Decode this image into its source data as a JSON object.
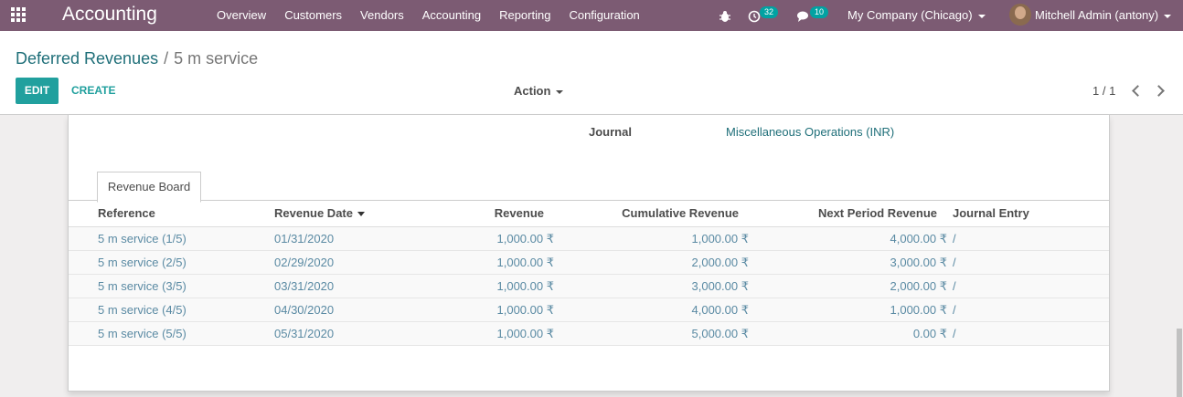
{
  "navbar": {
    "app_name": "Accounting",
    "menu": [
      "Overview",
      "Customers",
      "Vendors",
      "Accounting",
      "Reporting",
      "Configuration"
    ],
    "activity_count": "32",
    "message_count": "10",
    "company": "My Company (Chicago)",
    "user": "Mitchell Admin (antony)",
    "colors": {
      "bar": "#7c5b73",
      "badge": "#01a2a2"
    }
  },
  "control_panel": {
    "breadcrumb_parent": "Deferred Revenues",
    "breadcrumb_current": "5 m service",
    "edit_label": "EDIT",
    "create_label": "CREATE",
    "action_label": "Action",
    "pager": "1 / 1"
  },
  "form": {
    "journal_label": "Journal",
    "journal_value": "Miscellaneous Operations (INR)",
    "tab_label": "Revenue Board",
    "columns": [
      "Reference",
      "Revenue Date",
      "Revenue",
      "Cumulative Revenue",
      "Next Period Revenue",
      "Journal Entry"
    ],
    "rows": [
      {
        "reference": "5 m service (1/5)",
        "date": "01/31/2020",
        "revenue": "1,000.00 ₹",
        "cumulative": "1,000.00 ₹",
        "next": "4,000.00 ₹",
        "entry": "/"
      },
      {
        "reference": "5 m service (2/5)",
        "date": "02/29/2020",
        "revenue": "1,000.00 ₹",
        "cumulative": "2,000.00 ₹",
        "next": "3,000.00 ₹",
        "entry": "/"
      },
      {
        "reference": "5 m service (3/5)",
        "date": "03/31/2020",
        "revenue": "1,000.00 ₹",
        "cumulative": "3,000.00 ₹",
        "next": "2,000.00 ₹",
        "entry": "/"
      },
      {
        "reference": "5 m service (4/5)",
        "date": "04/30/2020",
        "revenue": "1,000.00 ₹",
        "cumulative": "4,000.00 ₹",
        "next": "1,000.00 ₹",
        "entry": "/"
      },
      {
        "reference": "5 m service (5/5)",
        "date": "05/31/2020",
        "revenue": "1,000.00 ₹",
        "cumulative": "5,000.00 ₹",
        "next": "0.00 ₹",
        "entry": "/"
      }
    ]
  }
}
